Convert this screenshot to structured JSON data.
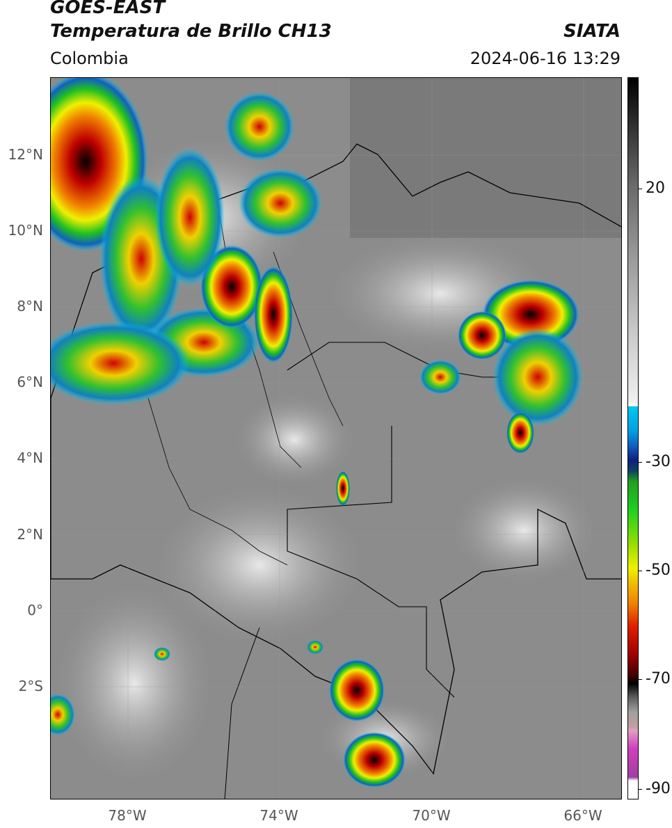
{
  "header": {
    "satellite": "GOES-EAST",
    "product": "Temperatura de Brillo CH13",
    "region": "Colombia",
    "agency": "SIATA",
    "datetime": "2024-06-16 13:29"
  },
  "map": {
    "lat_labels": [
      "12°N",
      "10°N",
      "8°N",
      "6°N",
      "4°N",
      "2°N",
      "0°",
      "2°S"
    ],
    "lon_labels": [
      "78°W",
      "74°W",
      "70°W",
      "66°W"
    ]
  },
  "colorbar": {
    "labels": [
      "20",
      "-30",
      "-50",
      "-70",
      "-90"
    ],
    "colors": {
      "warm_gray": "#bdbdbd",
      "cyan": "#00c8f0",
      "dark_blue": "#102080",
      "green": "#20d020",
      "yellow": "#f0f000",
      "red": "#d00000",
      "black": "#000000",
      "magenta": "#d040c0"
    }
  }
}
